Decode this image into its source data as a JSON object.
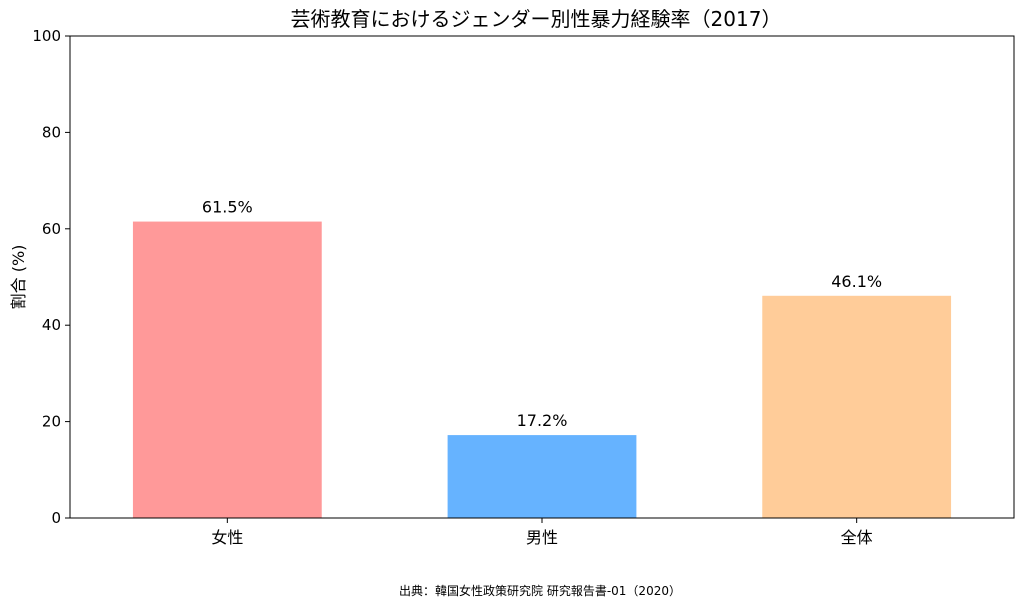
{
  "chart_data": {
    "type": "bar",
    "title": "芸術教育におけるジェンダー別性暴力経験率（2017）",
    "xlabel": "",
    "ylabel": "割合 (%)",
    "categories": [
      "女性",
      "男性",
      "全体"
    ],
    "values": [
      61.5,
      17.2,
      46.1
    ],
    "value_labels": [
      "61.5%",
      "17.2%",
      "46.1%"
    ],
    "colors": [
      "#ff9999",
      "#66b3ff",
      "#ffcc99"
    ],
    "ylim": [
      0,
      100
    ],
    "yticks": [
      0,
      20,
      40,
      60,
      80,
      100
    ],
    "grid": false,
    "legend": "none"
  },
  "footer": {
    "source": "出典：韓国女性政策研究院 研究報告書-01（2020）"
  }
}
